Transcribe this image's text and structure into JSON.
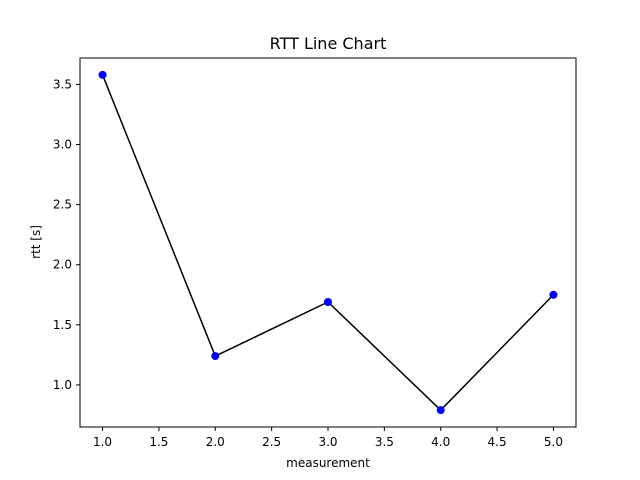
{
  "chart_data": {
    "type": "line",
    "title": "RTT Line Chart",
    "xlabel": "measurement",
    "ylabel": "rtt [s]",
    "xlim": [
      0.8,
      5.2
    ],
    "ylim": [
      0.65,
      3.72
    ],
    "xticks": [
      "1.0",
      "1.5",
      "2.0",
      "2.5",
      "3.0",
      "3.5",
      "4.0",
      "4.5",
      "5.0"
    ],
    "yticks": [
      "1.0",
      "1.5",
      "2.0",
      "2.5",
      "3.0",
      "3.5"
    ],
    "grid": false,
    "series": [
      {
        "x": [
          1,
          2,
          3,
          4,
          5
        ],
        "y": [
          3.58,
          1.24,
          1.69,
          0.79,
          1.75
        ],
        "line_color": "#000000",
        "marker_color": "#0000ff"
      }
    ]
  }
}
